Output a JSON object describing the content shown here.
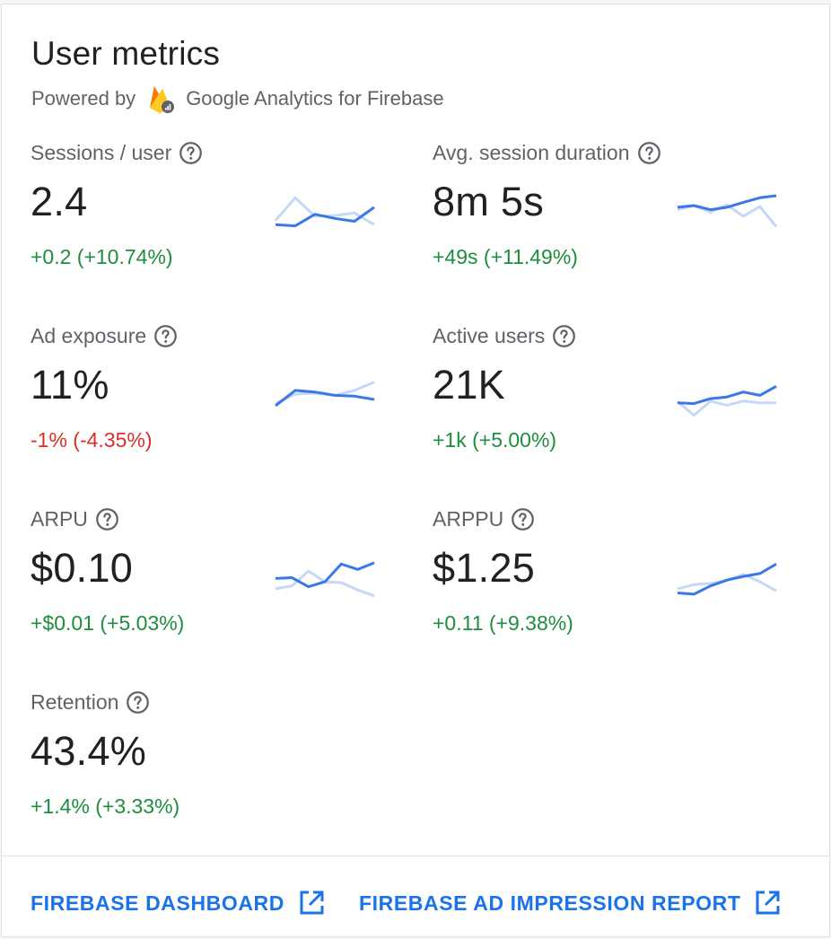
{
  "header": {
    "title": "User metrics",
    "powered_by": "Powered by",
    "brand": "Google Analytics for Firebase"
  },
  "colors": {
    "accent": "#1a73e8",
    "spark_current": "#3b78e7",
    "spark_previous": "#c6d7f7",
    "positive": "#1e8e3e",
    "negative": "#d93025"
  },
  "metrics": [
    {
      "label": "Sessions / user",
      "value": "2.4",
      "delta": "+0.2 (+10.74%)",
      "trend": "positive",
      "spark": {
        "current": [
          0.3,
          0.27,
          0.55,
          0.45,
          0.38,
          0.72
        ],
        "previous": [
          0.4,
          0.95,
          0.5,
          0.52,
          0.58,
          0.3
        ]
      }
    },
    {
      "label": "Avg. session duration",
      "value": "8m 5s",
      "delta": "+49s (+11.49%)",
      "trend": "positive",
      "spark": {
        "current": [
          0.72,
          0.76,
          0.66,
          0.72,
          0.84,
          0.95,
          1.0
        ],
        "previous": [
          0.66,
          0.76,
          0.6,
          0.78,
          0.5,
          0.74,
          0.25
        ]
      }
    },
    {
      "label": "Ad exposure",
      "value": "11%",
      "delta": "-1% (-4.35%)",
      "trend": "negative",
      "spark": {
        "current": [
          0.35,
          0.72,
          0.68,
          0.6,
          0.58,
          0.5
        ],
        "previous": [
          0.4,
          0.63,
          0.65,
          0.6,
          0.72,
          0.92
        ]
      }
    },
    {
      "label": "Active users",
      "value": "21K",
      "delta": "+1k (+5.00%)",
      "trend": "positive",
      "spark": {
        "current": [
          0.42,
          0.4,
          0.52,
          0.56,
          0.68,
          0.6,
          0.82
        ],
        "previous": [
          0.45,
          0.12,
          0.46,
          0.36,
          0.46,
          0.42,
          0.42
        ]
      }
    },
    {
      "label": "ARPU",
      "value": "$0.10",
      "delta": "+$0.01 (+5.03%)",
      "trend": "positive",
      "spark": {
        "current": [
          0.6,
          0.62,
          0.4,
          0.52,
          0.95,
          0.82,
          0.98
        ],
        "previous": [
          0.35,
          0.42,
          0.78,
          0.52,
          0.5,
          0.32,
          0.18
        ]
      }
    },
    {
      "label": "ARPPU",
      "value": "$1.25",
      "delta": "+0.11 (+9.38%)",
      "trend": "positive",
      "spark": {
        "current": [
          0.25,
          0.22,
          0.42,
          0.56,
          0.65,
          0.72,
          0.95
        ],
        "previous": [
          0.35,
          0.45,
          0.48,
          0.55,
          0.7,
          0.52,
          0.3
        ]
      }
    },
    {
      "label": "Retention",
      "value": "43.4%",
      "delta": "+1.4% (+3.33%)",
      "trend": "positive",
      "spark": null
    }
  ],
  "footer": {
    "dashboard_link": "FIREBASE DASHBOARD",
    "ad_report_link": "FIREBASE AD IMPRESSION REPORT"
  }
}
